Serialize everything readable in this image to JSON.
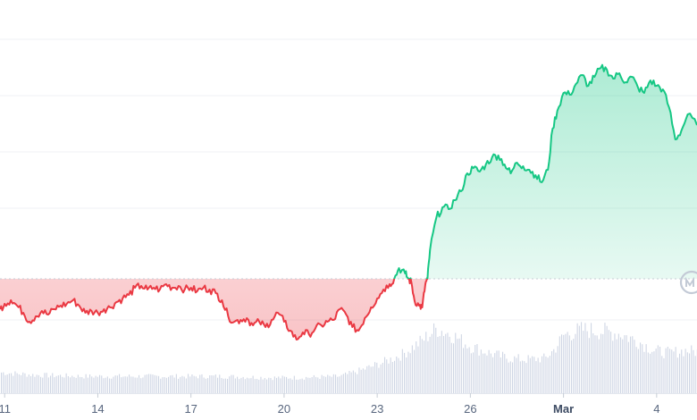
{
  "chart_data": {
    "type": "area",
    "title": "",
    "xlabel": "",
    "ylabel": "",
    "x_ticks": [
      {
        "label": "11",
        "day": 11
      },
      {
        "label": "14",
        "day": 14
      },
      {
        "label": "17",
        "day": 17
      },
      {
        "label": "20",
        "day": 20
      },
      {
        "label": "23",
        "day": 23
      },
      {
        "label": "26",
        "day": 26
      },
      {
        "label": "Mar",
        "day": 29.0,
        "bold": true
      },
      {
        "label": "4",
        "day": 32
      }
    ],
    "x_range": [
      10.85,
      33.3
    ],
    "y_range": [
      0,
      100
    ],
    "baseline": 32,
    "grid": true,
    "colors": {
      "above": "#16c784",
      "below": "#ea3943",
      "above_fill_top": "#16c784",
      "below_fill_bottom": "#ea3943",
      "volume": "#cfd6e4",
      "grid": "#eff2f5",
      "baseline": "#c7cdd6",
      "axis_text": "#58667e"
    },
    "price_series": {
      "name": "",
      "points": [
        [
          10.85,
          23.5
        ],
        [
          11.0,
          25.0
        ],
        [
          11.2,
          26.0
        ],
        [
          11.4,
          24.5
        ],
        [
          11.6,
          22.5
        ],
        [
          11.8,
          20.0
        ],
        [
          12.0,
          21.5
        ],
        [
          12.2,
          23.0
        ],
        [
          12.4,
          22.0
        ],
        [
          12.6,
          23.5
        ],
        [
          12.8,
          24.5
        ],
        [
          13.0,
          25.0
        ],
        [
          13.2,
          26.0
        ],
        [
          13.4,
          24.5
        ],
        [
          13.6,
          22.5
        ],
        [
          13.8,
          23.0
        ],
        [
          14.0,
          22.5
        ],
        [
          14.2,
          23.5
        ],
        [
          14.4,
          24.0
        ],
        [
          14.6,
          25.5
        ],
        [
          14.8,
          26.5
        ],
        [
          15.0,
          27.5
        ],
        [
          15.2,
          29.5
        ],
        [
          15.4,
          30.0
        ],
        [
          15.6,
          29.0
        ],
        [
          15.8,
          29.5
        ],
        [
          16.0,
          29.0
        ],
        [
          16.2,
          30.5
        ],
        [
          16.4,
          29.5
        ],
        [
          16.6,
          30.0
        ],
        [
          16.8,
          29.0
        ],
        [
          17.0,
          29.5
        ],
        [
          17.2,
          28.5
        ],
        [
          17.4,
          29.5
        ],
        [
          17.6,
          29.0
        ],
        [
          17.8,
          28.0
        ],
        [
          18.0,
          26.0
        ],
        [
          18.2,
          21.5
        ],
        [
          18.4,
          20.0
        ],
        [
          18.6,
          20.5
        ],
        [
          18.8,
          21.0
        ],
        [
          19.0,
          19.0
        ],
        [
          19.2,
          20.0
        ],
        [
          19.4,
          18.5
        ],
        [
          19.6,
          20.5
        ],
        [
          19.8,
          22.5
        ],
        [
          20.0,
          20.0
        ],
        [
          20.2,
          17.5
        ],
        [
          20.4,
          15.0
        ],
        [
          20.6,
          17.0
        ],
        [
          20.8,
          16.5
        ],
        [
          21.0,
          18.0
        ],
        [
          21.2,
          19.0
        ],
        [
          21.4,
          20.0
        ],
        [
          21.6,
          20.5
        ],
        [
          21.8,
          23.5
        ],
        [
          22.0,
          22.0
        ],
        [
          22.2,
          18.5
        ],
        [
          22.4,
          17.5
        ],
        [
          22.6,
          21.0
        ],
        [
          22.8,
          24.0
        ],
        [
          23.0,
          26.5
        ],
        [
          23.2,
          29.0
        ],
        [
          23.4,
          30.5
        ],
        [
          23.55,
          32.0
        ],
        [
          23.7,
          35.0
        ],
        [
          23.9,
          33.5
        ],
        [
          24.0,
          32.0
        ],
        [
          24.1,
          31.0
        ],
        [
          24.2,
          26.0
        ],
        [
          24.35,
          24.5
        ],
        [
          24.45,
          24.0
        ],
        [
          24.55,
          30.5
        ],
        [
          24.62,
          32.0
        ],
        [
          24.7,
          40.0
        ],
        [
          24.9,
          49.0
        ],
        [
          25.1,
          52.0
        ],
        [
          25.3,
          51.5
        ],
        [
          25.5,
          54.0
        ],
        [
          25.7,
          56.5
        ],
        [
          25.9,
          61.5
        ],
        [
          26.1,
          63.0
        ],
        [
          26.3,
          62.0
        ],
        [
          26.5,
          64.0
        ],
        [
          26.7,
          66.0
        ],
        [
          26.9,
          66.5
        ],
        [
          27.1,
          64.0
        ],
        [
          27.3,
          61.5
        ],
        [
          27.5,
          64.5
        ],
        [
          27.7,
          63.5
        ],
        [
          27.9,
          62.5
        ],
        [
          28.1,
          61.0
        ],
        [
          28.3,
          59.0
        ],
        [
          28.5,
          62.5
        ],
        [
          28.65,
          74.0
        ],
        [
          28.8,
          79.0
        ],
        [
          29.0,
          84.0
        ],
        [
          29.2,
          83.5
        ],
        [
          29.4,
          86.5
        ],
        [
          29.6,
          89.0
        ],
        [
          29.8,
          86.0
        ],
        [
          30.0,
          88.5
        ],
        [
          30.2,
          91.0
        ],
        [
          30.4,
          90.5
        ],
        [
          30.6,
          88.0
        ],
        [
          30.8,
          89.5
        ],
        [
          31.0,
          87.0
        ],
        [
          31.2,
          88.5
        ],
        [
          31.4,
          85.5
        ],
        [
          31.6,
          84.0
        ],
        [
          31.8,
          87.5
        ],
        [
          32.0,
          86.0
        ],
        [
          32.2,
          85.0
        ],
        [
          32.4,
          80.0
        ],
        [
          32.6,
          71.0
        ],
        [
          32.8,
          73.5
        ],
        [
          33.0,
          78.0
        ],
        [
          33.3,
          75.0
        ]
      ]
    },
    "volume_series": {
      "name": "",
      "x": [
        10.85,
        12.0,
        13.5,
        15.0,
        16.5,
        18.0,
        19.5,
        20.5,
        21.8,
        22.5,
        23.2,
        23.8,
        24.4,
        24.9,
        25.4,
        26.0,
        26.6,
        27.2,
        27.8,
        28.4,
        28.7,
        29.0,
        29.6,
        30.2,
        30.8,
        31.4,
        31.9,
        32.4,
        32.9,
        33.3
      ],
      "values": [
        16,
        14,
        13,
        13,
        13,
        13,
        12,
        12,
        13,
        18,
        24,
        30,
        40,
        50,
        45,
        36,
        31,
        27,
        26,
        27,
        34,
        45,
        49,
        48,
        46,
        40,
        33,
        31,
        33,
        32
      ]
    }
  }
}
